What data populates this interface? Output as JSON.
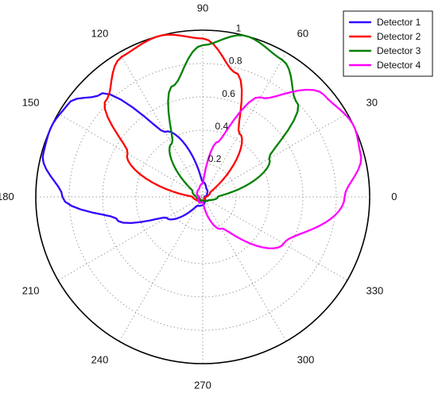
{
  "chart_data": {
    "type": "polar-line",
    "angle_unit": "degrees",
    "theta_ticks": [
      "0",
      "30",
      "60",
      "90",
      "120",
      "150",
      "180",
      "210",
      "240",
      "270",
      "300",
      "330"
    ],
    "r_ticks": [
      "0.2",
      "0.4",
      "0.6",
      "0.8",
      "1"
    ],
    "rlim": [
      0,
      1
    ],
    "grid": true,
    "legend_position": "top-right",
    "series": [
      {
        "name": "Detector 1",
        "color": "#3300ff",
        "center_angle": 155,
        "points": [
          {
            "theta": 0,
            "r": 0.01
          },
          {
            "theta": 30,
            "r": 0.03
          },
          {
            "theta": 60,
            "r": 0.05
          },
          {
            "theta": 90,
            "r": 0.09
          },
          {
            "theta": 120,
            "r": 0.45
          },
          {
            "theta": 135,
            "r": 0.87
          },
          {
            "theta": 145,
            "r": 0.98
          },
          {
            "theta": 155,
            "r": 1.0
          },
          {
            "theta": 165,
            "r": 0.99
          },
          {
            "theta": 180,
            "r": 0.84
          },
          {
            "theta": 195,
            "r": 0.53
          },
          {
            "theta": 210,
            "r": 0.25
          },
          {
            "theta": 240,
            "r": 0.06
          },
          {
            "theta": 270,
            "r": 0.05
          },
          {
            "theta": 300,
            "r": 0.03
          },
          {
            "theta": 330,
            "r": 0.01
          }
        ]
      },
      {
        "name": "Detector 2",
        "color": "#ff0000",
        "center_angle": 105,
        "points": [
          {
            "theta": 0,
            "r": 0.02
          },
          {
            "theta": 30,
            "r": 0.05
          },
          {
            "theta": 60,
            "r": 0.44
          },
          {
            "theta": 75,
            "r": 0.77
          },
          {
            "theta": 90,
            "r": 0.95
          },
          {
            "theta": 105,
            "r": 1.0
          },
          {
            "theta": 120,
            "r": 0.97
          },
          {
            "theta": 135,
            "r": 0.82
          },
          {
            "theta": 150,
            "r": 0.52
          },
          {
            "theta": 180,
            "r": 0.06
          },
          {
            "theta": 210,
            "r": 0.04
          },
          {
            "theta": 240,
            "r": 0.02
          },
          {
            "theta": 270,
            "r": 0.03
          },
          {
            "theta": 300,
            "r": 0.02
          },
          {
            "theta": 330,
            "r": 0.01
          }
        ]
      },
      {
        "name": "Detector 3",
        "color": "#008000",
        "center_angle": 75,
        "points": [
          {
            "theta": 0,
            "r": 0.09
          },
          {
            "theta": 30,
            "r": 0.46
          },
          {
            "theta": 45,
            "r": 0.8
          },
          {
            "theta": 60,
            "r": 0.95
          },
          {
            "theta": 75,
            "r": 1.0
          },
          {
            "theta": 90,
            "r": 0.91
          },
          {
            "theta": 105,
            "r": 0.69
          },
          {
            "theta": 120,
            "r": 0.37
          },
          {
            "theta": 150,
            "r": 0.07
          },
          {
            "theta": 180,
            "r": 0.04
          },
          {
            "theta": 210,
            "r": 0.02
          },
          {
            "theta": 240,
            "r": 0.03
          },
          {
            "theta": 270,
            "r": 0.02
          },
          {
            "theta": 300,
            "r": 0.03
          },
          {
            "theta": 330,
            "r": 0.04
          }
        ]
      },
      {
        "name": "Detector 4",
        "color": "#ff00ff",
        "center_angle": 25,
        "points": [
          {
            "theta": 0,
            "r": 0.85
          },
          {
            "theta": 15,
            "r": 0.98
          },
          {
            "theta": 25,
            "r": 1.0
          },
          {
            "theta": 40,
            "r": 0.95
          },
          {
            "theta": 60,
            "r": 0.69
          },
          {
            "theta": 75,
            "r": 0.34
          },
          {
            "theta": 90,
            "r": 0.08
          },
          {
            "theta": 120,
            "r": 0.05
          },
          {
            "theta": 150,
            "r": 0.04
          },
          {
            "theta": 180,
            "r": 0.02
          },
          {
            "theta": 210,
            "r": 0.03
          },
          {
            "theta": 240,
            "r": 0.04
          },
          {
            "theta": 270,
            "r": 0.03
          },
          {
            "theta": 300,
            "r": 0.22
          },
          {
            "theta": 330,
            "r": 0.56
          }
        ]
      }
    ]
  }
}
